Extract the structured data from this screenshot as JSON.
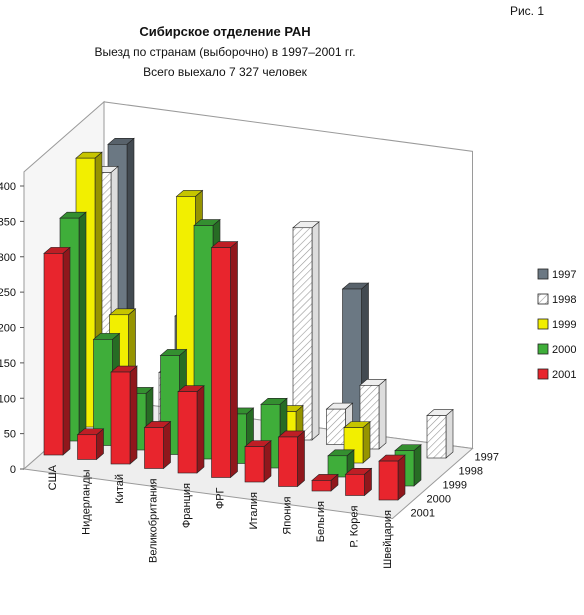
{
  "figure_label": "Рис. 1",
  "chart_data": {
    "type": "bar",
    "title": "Сибирское отделение РАН",
    "subtitle": "Выезд по странам (выборочно) в 1997–2001 гг.",
    "subtitle2": "Всего выехало 7 327 человек",
    "categories": [
      "США",
      "Нидерланды",
      "Китай",
      "Великобритания",
      "Франция",
      "ФРГ",
      "Италия",
      "Япония",
      "Бельгия",
      "Р. Корея",
      "Швейцария"
    ],
    "series": [
      {
        "name": "1997",
        "color": "#6b7883",
        "values": [
          360,
          0,
          130,
          0,
          0,
          0,
          0,
          200,
          0,
          0,
          0
        ]
      },
      {
        "name": "1998",
        "color": "#ffffff",
        "values": [
          340,
          0,
          70,
          0,
          0,
          0,
          300,
          50,
          90,
          0,
          60
        ]
      },
      {
        "name": "1999",
        "color": "#f2ef00",
        "values": [
          380,
          165,
          0,
          345,
          0,
          0,
          60,
          0,
          50,
          0,
          0
        ]
      },
      {
        "name": "2000",
        "color": "#3fae3a",
        "values": [
          315,
          150,
          80,
          140,
          330,
          70,
          90,
          0,
          30,
          0,
          50
        ]
      },
      {
        "name": "2001",
        "color": "#e8252d",
        "values": [
          285,
          35,
          130,
          58,
          115,
          325,
          50,
          70,
          15,
          30,
          55
        ]
      }
    ],
    "ylim": [
      0,
      400
    ],
    "yticks": [
      0,
      50,
      100,
      150,
      200,
      250,
      300,
      350,
      400
    ],
    "depth_labels": [
      "1997",
      "1998",
      "1999",
      "2000",
      "2001"
    ],
    "legend": [
      "1997",
      "1998",
      "1999",
      "2000",
      "2001"
    ],
    "legend_position": "right",
    "grid": false
  }
}
